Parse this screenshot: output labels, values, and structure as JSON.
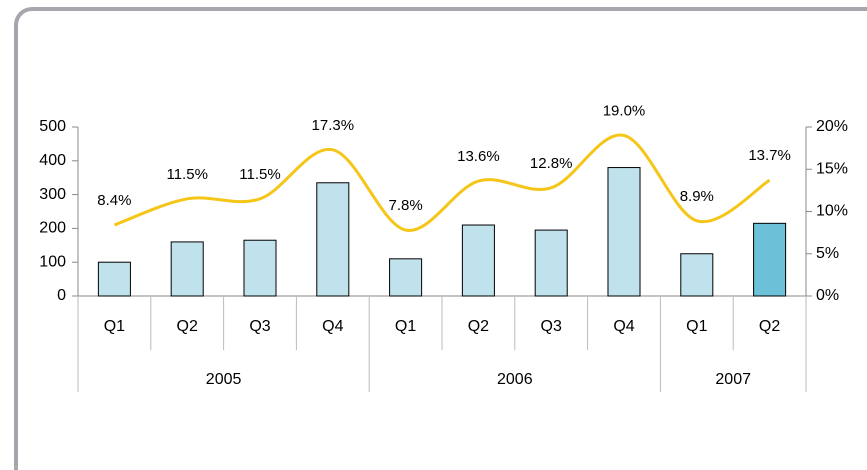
{
  "chart_data": {
    "type": "bar",
    "categories": [
      "Q1",
      "Q2",
      "Q3",
      "Q4",
      "Q1",
      "Q2",
      "Q3",
      "Q4",
      "Q1",
      "Q2"
    ],
    "groups": [
      {
        "label": "2005",
        "span": 4
      },
      {
        "label": "2006",
        "span": 4
      },
      {
        "label": "2007",
        "span": 2
      }
    ],
    "series": [
      {
        "type": "bar",
        "colors": [
          "#c0e2ec",
          "#c0e2ec",
          "#c0e2ec",
          "#c0e2ec",
          "#c0e2ec",
          "#c0e2ec",
          "#c0e2ec",
          "#c0e2ec",
          "#c0e2ec",
          "#6cc0d8"
        ],
        "values": [
          100,
          160,
          165,
          335,
          110,
          210,
          195,
          380,
          125,
          215
        ]
      },
      {
        "type": "line",
        "axis": "y2",
        "color": "#f5c518",
        "values": [
          8.4,
          11.5,
          11.5,
          17.3,
          7.8,
          13.6,
          12.8,
          19.0,
          8.9,
          13.7
        ],
        "value_labels": [
          "8.4%",
          "11.5%",
          "11.5%",
          "17.3%",
          "7.8%",
          "13.6%",
          "12.8%",
          "19.0%",
          "8.9%",
          "13.7%"
        ]
      }
    ],
    "ylim": [
      0,
      500
    ],
    "yticks": [
      0,
      100,
      200,
      300,
      400,
      500
    ],
    "y2lim": [
      0,
      20
    ],
    "y2ticks": [
      {
        "value": 0,
        "label": "0%"
      },
      {
        "value": 5,
        "label": "5%"
      },
      {
        "value": 10,
        "label": "10%"
      },
      {
        "value": 15,
        "label": "15%"
      },
      {
        "value": 20,
        "label": "20%"
      }
    ]
  }
}
